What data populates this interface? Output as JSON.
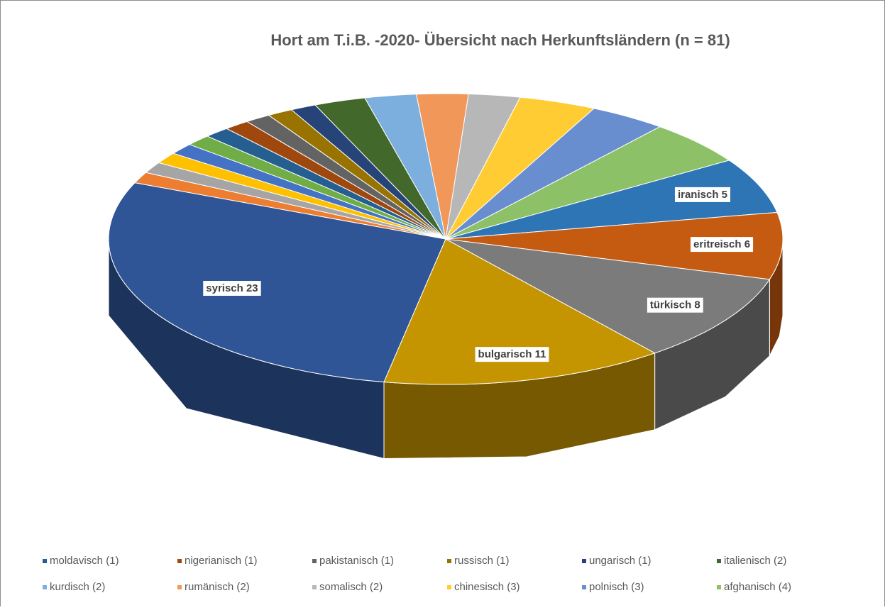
{
  "chart_data": {
    "type": "pie3d",
    "title": "Hort am T.i.B. -2020-  Übersicht nach Herkunftsländern (n = 81)",
    "categories": [
      "moldavisch (1)",
      "nigerianisch (1)",
      "pakistanisch (1)",
      "russisch (1)",
      "ungarisch (1)",
      "italienisch (2)",
      "kurdisch (2)",
      "rumänisch (2)",
      "somalisch (2)",
      "chinesisch (3)",
      "polnisch (3)",
      "afghanisch (4)",
      null,
      null,
      null,
      null,
      null,
      null,
      null,
      null,
      null,
      null
    ],
    "values": [
      1,
      1,
      1,
      1,
      1,
      2,
      2,
      2,
      2,
      3,
      3,
      4,
      5,
      6,
      8,
      11,
      23,
      1,
      1,
      1,
      1,
      1
    ],
    "value_labels": [
      null,
      null,
      null,
      null,
      null,
      null,
      null,
      null,
      null,
      null,
      null,
      null,
      "iranisch  5",
      "eritreisch 6",
      "türkisch 8",
      "bulgarisch 11",
      "syrisch 23",
      null,
      null,
      null,
      null,
      null
    ],
    "colors": [
      "#255e91",
      "#9e480e",
      "#636363",
      "#997300",
      "#264478",
      "#43682b",
      "#7cafdd",
      "#f1975a",
      "#b7b7b7",
      "#ffcd33",
      "#698ed0",
      "#8cc168",
      "#2e75b6",
      "#c55a11",
      "#7b7b7b",
      "#c49500",
      "#2f5597",
      "#ed7d31",
      "#a5a5a5",
      "#ffc000",
      "#4472c4",
      "#70ad47"
    ]
  }
}
